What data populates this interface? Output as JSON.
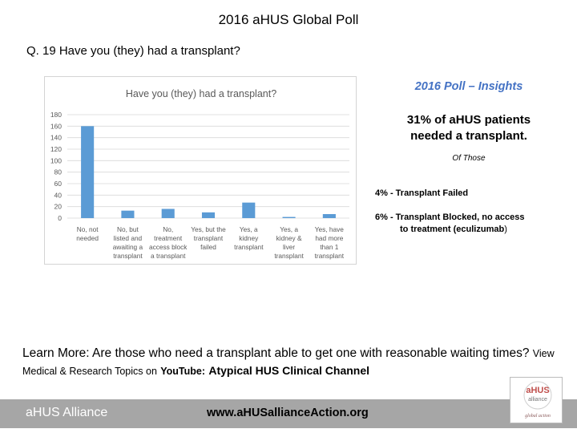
{
  "slide": {
    "title": "2016 aHUS Global Poll",
    "question": "Q. 19  Have you (they) had a transplant?"
  },
  "chart_data": {
    "type": "bar",
    "title": "Have you (they) had a transplant?",
    "categories": [
      [
        "No, not",
        "needed"
      ],
      [
        "No, but",
        "listed and",
        "awaiting a",
        "transplant"
      ],
      [
        "No,",
        "treatment",
        "access block",
        "a transplant"
      ],
      [
        "Yes, but the",
        "transplant",
        "failed"
      ],
      [
        "Yes, a",
        "kidney",
        "transplant"
      ],
      [
        "Yes, a",
        "kidney &",
        "liver",
        "transplant"
      ],
      [
        "Yes, have",
        "had more",
        "than 1",
        "transplant"
      ]
    ],
    "values": [
      160,
      13,
      16,
      10,
      27,
      2,
      7
    ],
    "yticks": [
      0,
      20,
      40,
      60,
      80,
      100,
      120,
      140,
      160,
      180
    ],
    "ylim": [
      0,
      180
    ],
    "gridlines": true,
    "bar_color": "#5b9bd5"
  },
  "insights": {
    "heading": "2016 Poll – Insights",
    "main_line1": "31% of aHUS patients",
    "main_line2": "needed a transplant.",
    "sub": "Of Those",
    "item1": "4% - Transplant Failed",
    "item2_line1": "6% -  Transplant Blocked, no access",
    "item2_line2_a": "to treatment (eculizumab",
    "item2_line2_b": ")"
  },
  "learn_more": {
    "text": "Learn More:  Are those who need a transplant able to get one with reasonable waiting times?",
    "view": "View Medical & Research Topics on",
    "youtube": "YouTube:",
    "channel": "Atypical HUS Clinical Channel"
  },
  "footer": {
    "org": "aHUS Alliance",
    "url": "www.aHUSallianceAction.org"
  },
  "logo": {
    "main": "aHUS",
    "sub": "alliance",
    "tagline": "global action"
  },
  "colors": {
    "accent": "#4472c4",
    "bar": "#5b9bd5",
    "footer_bg": "#a6a6a6",
    "logo_red": "#c0504d"
  }
}
